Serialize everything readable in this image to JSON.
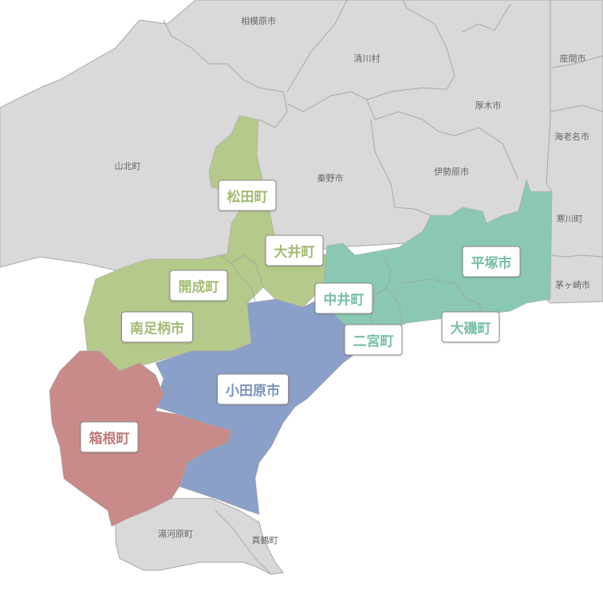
{
  "colors": {
    "background_region": "#d9d9d9",
    "border": "#a8a8a8",
    "green": "#b5c98b",
    "green_text": "#a3bb74",
    "teal": "#8ac8b2",
    "teal_text": "#77bfa4",
    "blue": "#8aa0c8",
    "blue_text": "#7a91c0",
    "red": "#c98a8a",
    "red_text": "#c07a7a"
  },
  "other_municipalities": [
    "相模原市",
    "清川村",
    "座間市",
    "厚木市",
    "海老名市",
    "山北町",
    "秦野市",
    "伊勢原市",
    "寒川町",
    "茅ヶ崎市",
    "湯河原町",
    "真鶴町"
  ],
  "highlighted": {
    "matsuda": "松田町",
    "oi": "大井町",
    "kaisei": "開成町",
    "minamiashigara": "南足柄市",
    "nakai": "中井町",
    "hiratsuka": "平塚市",
    "ninomiya": "二宮町",
    "oiso": "大磯町",
    "odawara": "小田原市",
    "hakone": "箱根町"
  }
}
